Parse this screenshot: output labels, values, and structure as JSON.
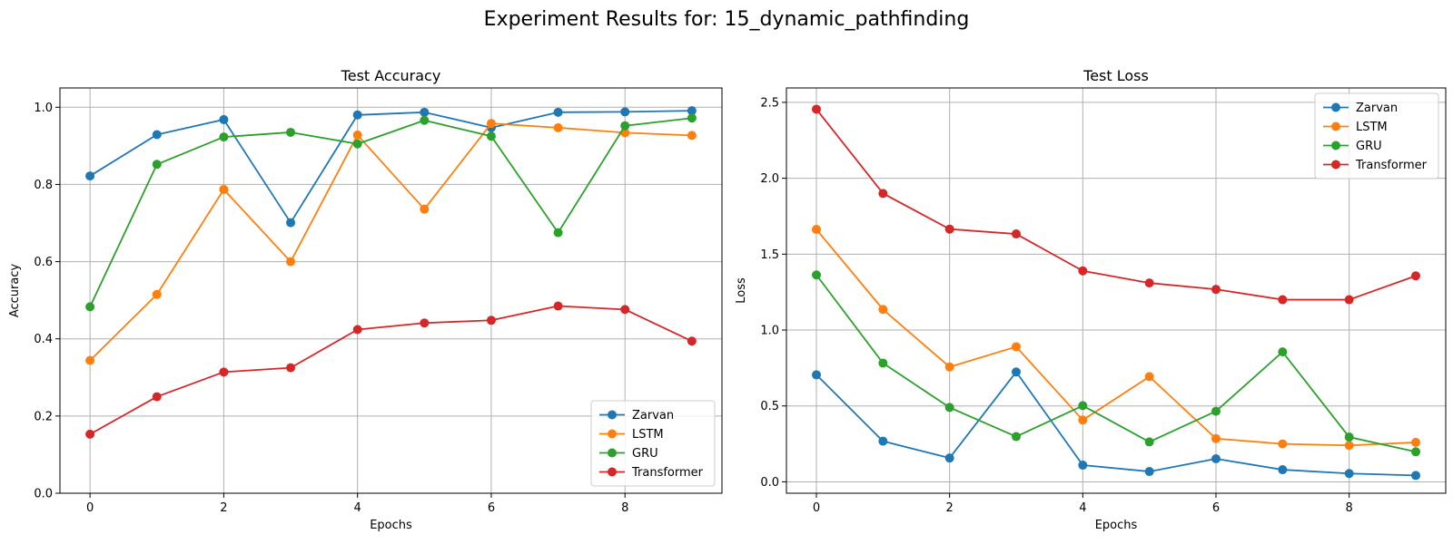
{
  "figure": {
    "suptitle": "Experiment Results for: 15_dynamic_pathfinding"
  },
  "chart_data": [
    {
      "type": "line",
      "title": "Test Accuracy",
      "xlabel": "Epochs",
      "ylabel": "Accuracy",
      "x": [
        0,
        1,
        2,
        3,
        4,
        5,
        6,
        7,
        8,
        9
      ],
      "xlim": [
        -0.45,
        9.45
      ],
      "ylim": [
        0.0,
        1.05
      ],
      "xticks": [
        0,
        2,
        4,
        6,
        8
      ],
      "xtick_labels": [
        "0",
        "2",
        "4",
        "6",
        "8"
      ],
      "yticks": [
        0.0,
        0.2,
        0.4,
        0.6,
        0.8,
        1.0
      ],
      "ytick_labels": [
        "0.0",
        "0.2",
        "0.4",
        "0.6",
        "0.8",
        "1.0"
      ],
      "grid": true,
      "legend_position": "lower-right",
      "series": [
        {
          "name": "Zarvan",
          "color": "#1f77b4",
          "values": [
            0.822,
            0.929,
            0.968,
            0.701,
            0.98,
            0.987,
            0.947,
            0.987,
            0.988,
            0.991
          ]
        },
        {
          "name": "LSTM",
          "color": "#ff7f0e",
          "values": [
            0.344,
            0.515,
            0.787,
            0.6,
            0.928,
            0.736,
            0.958,
            0.947,
            0.934,
            0.927
          ]
        },
        {
          "name": "GRU",
          "color": "#2ca02c",
          "values": [
            0.483,
            0.852,
            0.923,
            0.935,
            0.905,
            0.966,
            0.925,
            0.675,
            0.952,
            0.972
          ]
        },
        {
          "name": "Transformer",
          "color": "#d62728",
          "values": [
            0.153,
            0.25,
            0.314,
            0.325,
            0.424,
            0.441,
            0.448,
            0.485,
            0.476,
            0.394
          ]
        }
      ]
    },
    {
      "type": "line",
      "title": "Test Loss",
      "xlabel": "Epochs",
      "ylabel": "Loss",
      "x": [
        0,
        1,
        2,
        3,
        4,
        5,
        6,
        7,
        8,
        9
      ],
      "xlim": [
        -0.45,
        9.45
      ],
      "ylim": [
        -0.075,
        2.595
      ],
      "xticks": [
        0,
        2,
        4,
        6,
        8
      ],
      "xtick_labels": [
        "0",
        "2",
        "4",
        "6",
        "8"
      ],
      "yticks": [
        0.0,
        0.5,
        1.0,
        1.5,
        2.0,
        2.5
      ],
      "ytick_labels": [
        "0.0",
        "0.5",
        "1.0",
        "1.5",
        "2.0",
        "2.5"
      ],
      "grid": true,
      "legend_position": "upper-right",
      "series": [
        {
          "name": "Zarvan",
          "color": "#1f77b4",
          "values": [
            0.705,
            0.268,
            0.157,
            0.724,
            0.11,
            0.068,
            0.152,
            0.08,
            0.055,
            0.042
          ]
        },
        {
          "name": "LSTM",
          "color": "#ff7f0e",
          "values": [
            1.663,
            1.136,
            0.757,
            0.89,
            0.407,
            0.693,
            0.285,
            0.25,
            0.24,
            0.26
          ]
        },
        {
          "name": "GRU",
          "color": "#2ca02c",
          "values": [
            1.363,
            0.782,
            0.49,
            0.298,
            0.502,
            0.263,
            0.465,
            0.856,
            0.295,
            0.198
          ]
        },
        {
          "name": "Transformer",
          "color": "#d62728",
          "values": [
            2.455,
            1.9,
            1.665,
            1.633,
            1.39,
            1.31,
            1.268,
            1.2,
            1.2,
            1.357
          ]
        }
      ]
    }
  ]
}
